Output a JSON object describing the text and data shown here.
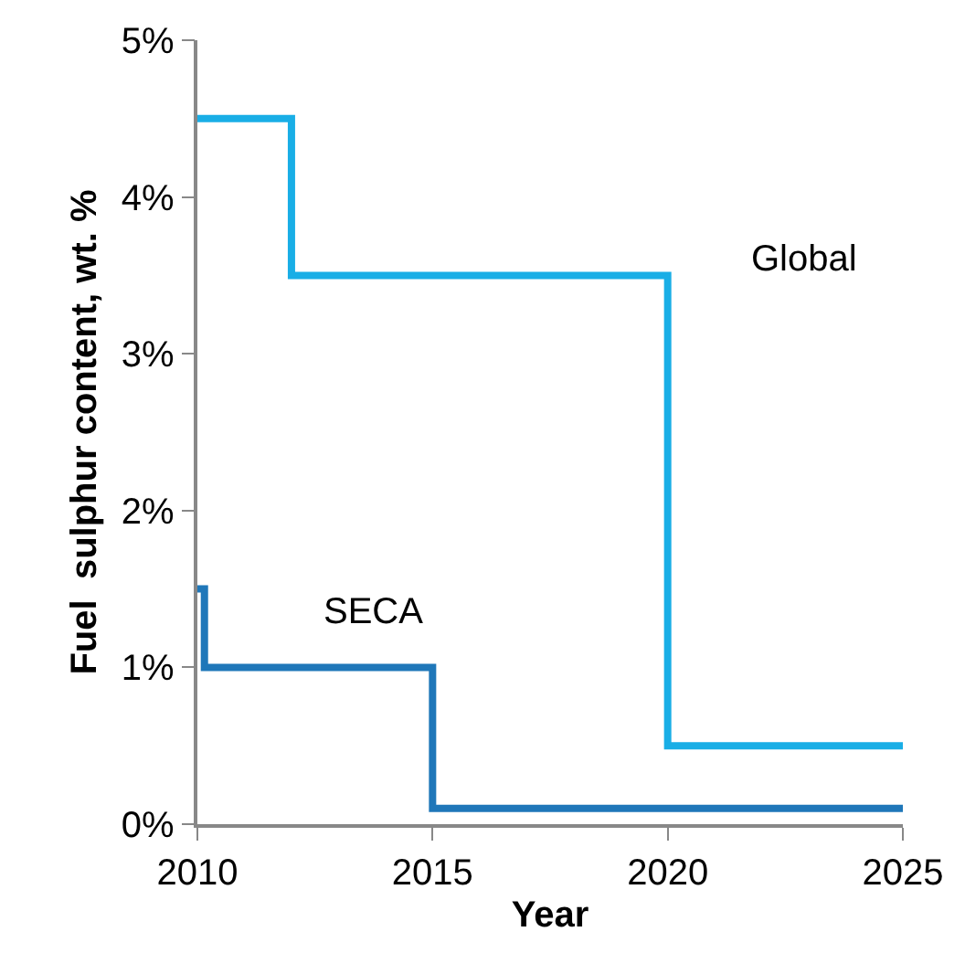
{
  "chart_data": {
    "type": "step",
    "xlabel": "Year",
    "ylabel": "Fuel  sulphur content, wt. %",
    "series": [
      {
        "color": "#19aee6",
        "x": [
          2010,
          2012,
          2020,
          2025
        ],
        "values": [
          4.5,
          3.5,
          0.5,
          0.5
        ]
      },
      {
        "color": "#1f77b9",
        "x": [
          2010,
          2010.15,
          2015,
          2025
        ],
        "values": [
          1.5,
          1.0,
          0.1,
          0.1
        ]
      }
    ],
    "annotations": [
      "Global",
      "SECA"
    ],
    "xlim": [
      2010,
      2025
    ],
    "xticks": [
      2010,
      2015,
      2020,
      2025
    ],
    "ylim": [
      0,
      5
    ],
    "yticks": [
      {
        "value": 0,
        "label": "0%"
      },
      {
        "value": 1,
        "label": "1%"
      },
      {
        "value": 2,
        "label": "2%"
      },
      {
        "value": 3,
        "label": "3%"
      },
      {
        "value": 4,
        "label": "4%"
      },
      {
        "value": 5,
        "label": "5%"
      }
    ],
    "line_style": "solid",
    "marker": "none"
  }
}
